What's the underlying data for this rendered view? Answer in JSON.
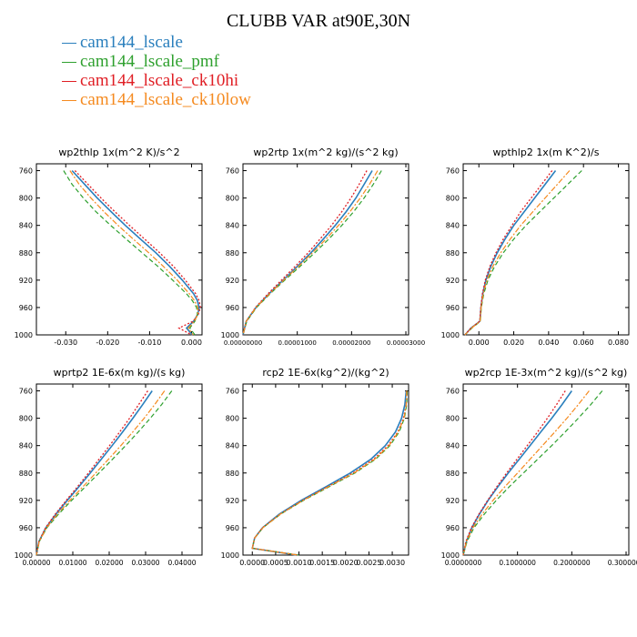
{
  "title": "CLUBB VAR at90E,30N",
  "legend": [
    {
      "label": "cam144_lscale",
      "color": "#2a7fbd"
    },
    {
      "label": "cam144_lscale_pmf",
      "color": "#2ea02e"
    },
    {
      "label": "cam144_lscale_ck10hi",
      "color": "#e01e24"
    },
    {
      "label": "cam144_lscale_ck10low",
      "color": "#f58a1f"
    }
  ],
  "chart_data": [
    {
      "type": "line",
      "title": "wp2thlp  1x(m^2 K)/s^2",
      "ylabel": "",
      "xlabel": "",
      "yticks": [
        "760",
        "800",
        "840",
        "880",
        "920",
        "960",
        "1000"
      ],
      "xticks": [
        {
          "v": -0.03,
          "label": "-0.030"
        },
        {
          "v": -0.02,
          "label": "-0.020"
        },
        {
          "v": -0.01,
          "label": "-0.010"
        },
        {
          "v": 0.0,
          "label": "0.000"
        }
      ],
      "xlim": [
        -0.037,
        0.0025
      ],
      "ylim": [
        1000,
        750
      ],
      "y": [
        760,
        780,
        800,
        820,
        840,
        860,
        880,
        900,
        920,
        940,
        950,
        960,
        970,
        980,
        990,
        1000
      ],
      "series": [
        {
          "x": [
            -0.0285,
            -0.0255,
            -0.0225,
            -0.0192,
            -0.0158,
            -0.0122,
            -0.0085,
            -0.0052,
            -0.0022,
            0.0005,
            0.0014,
            0.0018,
            0.0015,
            0.0005,
            -0.0012,
            0.0002
          ]
        },
        {
          "x": [
            -0.0305,
            -0.0285,
            -0.0258,
            -0.0228,
            -0.0193,
            -0.0156,
            -0.0118,
            -0.008,
            -0.0045,
            -0.0012,
            0.0002,
            0.0012,
            0.0014,
            0.0008,
            -0.0004,
            0.0008
          ]
        },
        {
          "x": [
            -0.0278,
            -0.0247,
            -0.0216,
            -0.0183,
            -0.0148,
            -0.0112,
            -0.0076,
            -0.0043,
            -0.0015,
            0.001,
            0.0018,
            0.0021,
            0.0016,
            0.0004,
            -0.003,
            0.0
          ]
        },
        {
          "x": [
            -0.029,
            -0.0268,
            -0.024,
            -0.0209,
            -0.0175,
            -0.0139,
            -0.0102,
            -0.0067,
            -0.0034,
            -0.0005,
            0.0007,
            0.0015,
            0.0015,
            0.0007,
            -0.0008,
            0.0004
          ]
        }
      ]
    },
    {
      "type": "line",
      "title": "wp2rtp  1x(m^2 kg)/(s^2 kg)",
      "ylabel": "",
      "xlabel": "",
      "yticks": [
        "760",
        "800",
        "840",
        "880",
        "920",
        "960",
        "1000"
      ],
      "xticks": [
        {
          "v": 0.0,
          "label": "0.00000000"
        },
        {
          "v": 1e-05,
          "label": "0.00001000"
        },
        {
          "v": 2e-05,
          "label": "0.00002000"
        },
        {
          "v": 3e-05,
          "label": "0.00003000"
        }
      ],
      "xlim": [
        0.0,
        3.05e-05
      ],
      "ylim": [
        1000,
        750
      ],
      "y": [
        760,
        780,
        800,
        820,
        840,
        860,
        880,
        900,
        920,
        940,
        960,
        980,
        1000
      ],
      "series": [
        {
          "x": [
            2.38e-05,
            2.23e-05,
            2.08e-05,
            1.9e-05,
            1.7e-05,
            1.48e-05,
            1.25e-05,
            1e-05,
            7.4e-06,
            4.8e-06,
            2.4e-06,
            6e-07,
            0.0
          ]
        },
        {
          "x": [
            2.55e-05,
            2.4e-05,
            2.23e-05,
            2.04e-05,
            1.82e-05,
            1.58e-05,
            1.32e-05,
            1.05e-05,
            7.7e-06,
            5e-06,
            2.5e-06,
            7e-07,
            0.0
          ]
        },
        {
          "x": [
            2.28e-05,
            2.14e-05,
            1.99e-05,
            1.82e-05,
            1.63e-05,
            1.42e-05,
            1.2e-05,
            9.6e-06,
            7.1e-06,
            4.6e-06,
            2.3e-06,
            6e-07,
            0.0
          ]
        },
        {
          "x": [
            2.48e-05,
            2.33e-05,
            2.16e-05,
            1.97e-05,
            1.76e-05,
            1.53e-05,
            1.28e-05,
            1.02e-05,
            7.5e-06,
            4.9e-06,
            2.4e-06,
            6e-07,
            0.0
          ]
        }
      ]
    },
    {
      "type": "line",
      "title": "wpthlp2  1x(m K^2)/s",
      "ylabel": "",
      "xlabel": "",
      "yticks": [
        "760",
        "800",
        "840",
        "880",
        "920",
        "960",
        "1000"
      ],
      "xticks": [
        {
          "v": 0.0,
          "label": "0.000"
        },
        {
          "v": 0.02,
          "label": "0.020"
        },
        {
          "v": 0.04,
          "label": "0.040"
        },
        {
          "v": 0.06,
          "label": "0.060"
        },
        {
          "v": 0.08,
          "label": "0.080"
        }
      ],
      "xlim": [
        -0.009,
        0.086
      ],
      "ylim": [
        1000,
        750
      ],
      "y": [
        760,
        780,
        800,
        820,
        840,
        860,
        880,
        900,
        920,
        940,
        960,
        980,
        990,
        1000
      ],
      "series": [
        {
          "x": [
            0.044,
            0.038,
            0.032,
            0.026,
            0.02,
            0.015,
            0.0105,
            0.0068,
            0.004,
            0.0022,
            0.0012,
            0.0006,
            -0.0045,
            -0.008
          ]
        },
        {
          "x": [
            0.059,
            0.051,
            0.043,
            0.035,
            0.027,
            0.02,
            0.014,
            0.009,
            0.0052,
            0.0028,
            0.0014,
            0.0008,
            -0.004,
            -0.008
          ]
        },
        {
          "x": [
            0.042,
            0.036,
            0.03,
            0.024,
            0.019,
            0.014,
            0.0098,
            0.0063,
            0.0037,
            0.002,
            0.0011,
            0.0005,
            -0.0045,
            -0.008
          ]
        },
        {
          "x": [
            0.052,
            0.045,
            0.038,
            0.031,
            0.024,
            0.018,
            0.0125,
            0.008,
            0.0046,
            0.0025,
            0.0013,
            0.0007,
            -0.0042,
            -0.008
          ]
        }
      ]
    },
    {
      "type": "line",
      "title": "wprtp2  1E-6x(m kg)/(s kg)",
      "ylabel": "",
      "xlabel": "",
      "yticks": [
        "760",
        "800",
        "840",
        "880",
        "920",
        "960",
        "1000"
      ],
      "xticks": [
        {
          "v": 0.0,
          "label": "0.00000"
        },
        {
          "v": 0.01,
          "label": "0.01000"
        },
        {
          "v": 0.02,
          "label": "0.02000"
        },
        {
          "v": 0.03,
          "label": "0.03000"
        },
        {
          "v": 0.04,
          "label": "0.04000"
        }
      ],
      "xlim": [
        0.0,
        0.0455
      ],
      "ylim": [
        1000,
        750
      ],
      "y": [
        760,
        780,
        800,
        820,
        840,
        860,
        880,
        900,
        920,
        940,
        960,
        980,
        1000
      ],
      "series": [
        {
          "x": [
            0.0318,
            0.0292,
            0.0265,
            0.0237,
            0.0208,
            0.0178,
            0.0148,
            0.0117,
            0.0085,
            0.0054,
            0.0026,
            0.0007,
            0.0
          ]
        },
        {
          "x": [
            0.0372,
            0.0344,
            0.0313,
            0.028,
            0.0245,
            0.0209,
            0.0172,
            0.0135,
            0.0097,
            0.0061,
            0.0029,
            0.0008,
            0.0
          ]
        },
        {
          "x": [
            0.0306,
            0.0281,
            0.0256,
            0.0229,
            0.0201,
            0.0172,
            0.0143,
            0.0113,
            0.0082,
            0.0052,
            0.0025,
            0.0007,
            0.0
          ]
        },
        {
          "x": [
            0.0352,
            0.0325,
            0.0296,
            0.0265,
            0.0232,
            0.0198,
            0.0163,
            0.0128,
            0.0092,
            0.0058,
            0.0028,
            0.0008,
            0.0
          ]
        }
      ]
    },
    {
      "type": "line",
      "title": "rcp2  1E-6x(kg^2)/(kg^2)",
      "ylabel": "",
      "xlabel": "",
      "yticks": [
        "760",
        "800",
        "840",
        "880",
        "920",
        "960",
        "1000"
      ],
      "xticks": [
        {
          "v": 0.0,
          "label": "0.0000"
        },
        {
          "v": 0.0005,
          "label": "0.0005"
        },
        {
          "v": 0.001,
          "label": "0.0010"
        },
        {
          "v": 0.0015,
          "label": "0.0015"
        },
        {
          "v": 0.002,
          "label": "0.0020"
        },
        {
          "v": 0.0025,
          "label": "0.0025"
        },
        {
          "v": 0.003,
          "label": "0.0030"
        }
      ],
      "xlim": [
        -0.0002,
        0.00335
      ],
      "ylim": [
        1000,
        750
      ],
      "y": [
        760,
        780,
        800,
        820,
        840,
        860,
        880,
        900,
        920,
        940,
        960,
        975,
        990,
        1000
      ],
      "series": [
        {
          "x": [
            0.0033,
            0.00327,
            0.0032,
            0.00307,
            0.00285,
            0.00254,
            0.0021,
            0.00158,
            0.00105,
            0.00058,
            0.00022,
            5e-05,
            0.0,
            0.00095
          ]
        },
        {
          "x": [
            0.00332,
            0.00331,
            0.00326,
            0.00315,
            0.00295,
            0.00264,
            0.0022,
            0.00165,
            0.0011,
            0.00061,
            0.00023,
            5e-05,
            0.0,
            0.001
          ]
        },
        {
          "x": [
            0.00331,
            0.0033,
            0.00324,
            0.00312,
            0.00291,
            0.0026,
            0.00216,
            0.00162,
            0.00108,
            0.0006,
            0.00022,
            5e-05,
            0.0,
            0.00098
          ]
        },
        {
          "x": [
            0.00331,
            0.0033,
            0.00325,
            0.00313,
            0.00293,
            0.00262,
            0.00218,
            0.00163,
            0.00109,
            0.0006,
            0.00023,
            5e-05,
            0.0,
            0.00098
          ]
        }
      ]
    },
    {
      "type": "line",
      "title": "wp2rcp  1E-3x(m^2 kg)/(s^2 kg)",
      "ylabel": "",
      "xlabel": "",
      "yticks": [
        "760",
        "800",
        "840",
        "880",
        "920",
        "960",
        "1000"
      ],
      "xticks": [
        {
          "v": 0.0,
          "label": "0.0000000"
        },
        {
          "v": 0.1,
          "label": "0.1000000"
        },
        {
          "v": 0.2,
          "label": "0.2000000"
        },
        {
          "v": 0.3,
          "label": "0.3000000"
        }
      ],
      "xlim": [
        0.0,
        0.305
      ],
      "ylim": [
        1000,
        750
      ],
      "y": [
        760,
        780,
        800,
        820,
        840,
        860,
        880,
        900,
        920,
        940,
        960,
        980,
        1000
      ],
      "series": [
        {
          "x": [
            0.2,
            0.182,
            0.163,
            0.143,
            0.123,
            0.103,
            0.083,
            0.064,
            0.046,
            0.03,
            0.016,
            0.006,
            0.0
          ]
        },
        {
          "x": [
            0.256,
            0.235,
            0.212,
            0.188,
            0.163,
            0.137,
            0.111,
            0.085,
            0.061,
            0.039,
            0.02,
            0.007,
            0.0
          ]
        },
        {
          "x": [
            0.188,
            0.172,
            0.155,
            0.137,
            0.118,
            0.099,
            0.08,
            0.062,
            0.045,
            0.029,
            0.015,
            0.005,
            0.0
          ]
        },
        {
          "x": [
            0.232,
            0.212,
            0.191,
            0.169,
            0.146,
            0.123,
            0.1,
            0.077,
            0.055,
            0.035,
            0.018,
            0.006,
            0.0
          ]
        }
      ]
    }
  ]
}
